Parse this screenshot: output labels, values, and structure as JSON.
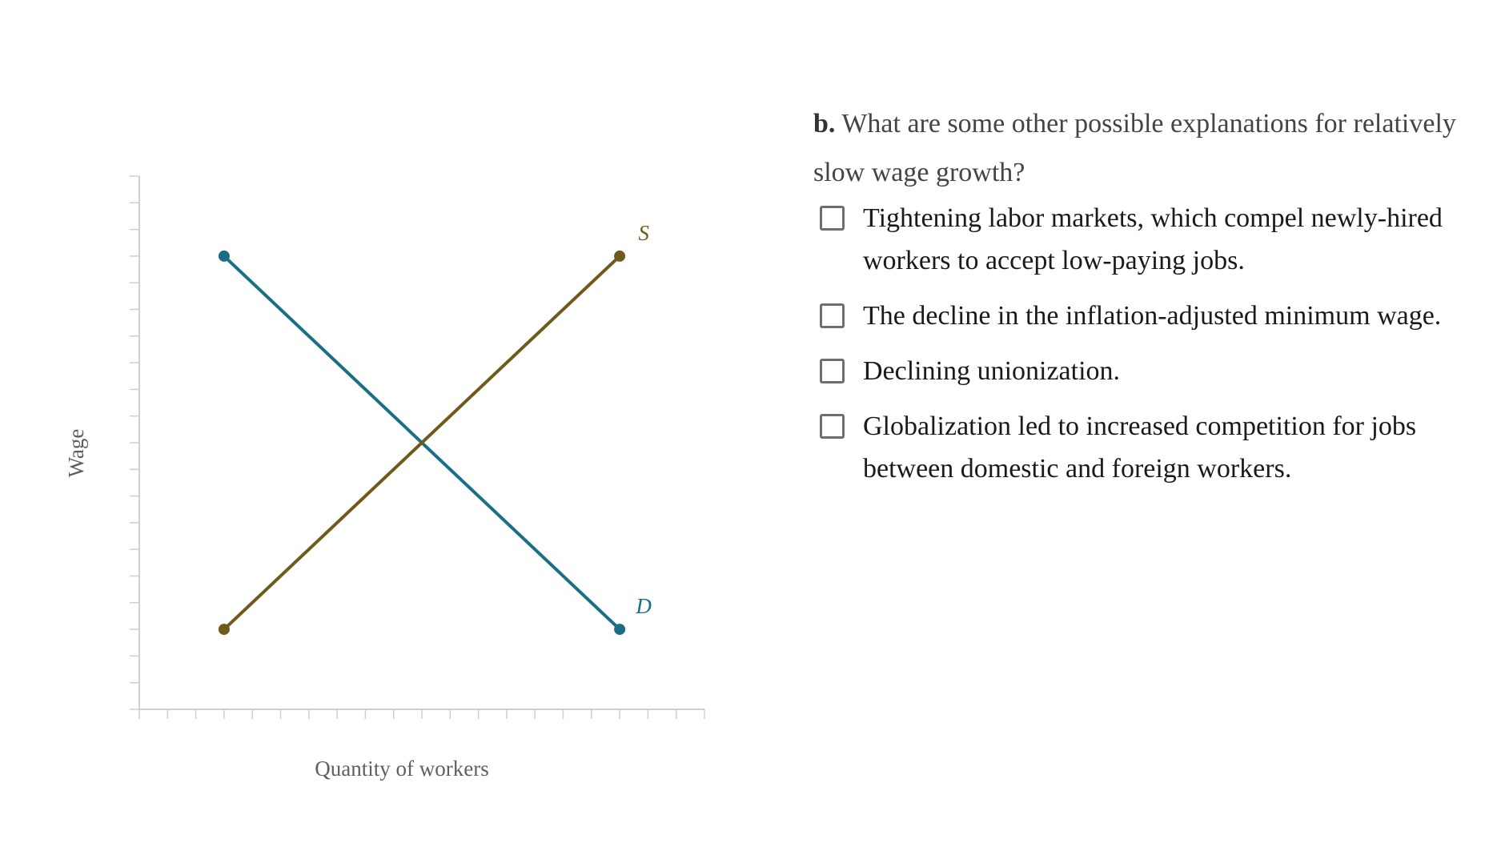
{
  "graph": {
    "xlabel": "Quantity of workers",
    "ylabel": "Wage",
    "colors": {
      "axis": "#cfcfcf",
      "demand": "#1a6f86",
      "supply": "#6e5a1a",
      "label_text": "#5f5f5f"
    },
    "curves": {
      "demand_label": "D",
      "supply_label": "S"
    }
  },
  "chart_data": {
    "type": "line",
    "title": "",
    "xlabel": "Quantity of workers",
    "ylabel": "Wage",
    "xlim": [
      0,
      20
    ],
    "ylim": [
      0,
      20
    ],
    "x_tick_count": 20,
    "y_tick_count": 20,
    "tick_labels_shown": false,
    "grid": false,
    "series": [
      {
        "name": "D",
        "color": "#1a6f86",
        "x": [
          3,
          17
        ],
        "y": [
          17,
          3
        ]
      },
      {
        "name": "S",
        "color": "#6e5a1a",
        "x": [
          3,
          17
        ],
        "y": [
          3,
          17
        ]
      }
    ]
  },
  "question": {
    "part": "b.",
    "text": "What are some other possible explanations for relatively slow wage growth?",
    "options": [
      {
        "label": "Tightening labor markets, which compel newly-hired workers to accept low-paying jobs.",
        "checked": false
      },
      {
        "label": "The decline in the inflation-adjusted minimum wage.",
        "checked": false
      },
      {
        "label": "Declining unionization.",
        "checked": false
      },
      {
        "label": "Globalization led to increased competition for jobs between domestic and foreign workers.",
        "checked": false
      }
    ]
  }
}
